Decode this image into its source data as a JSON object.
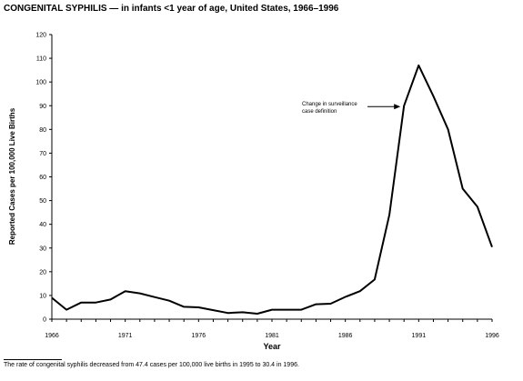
{
  "title": "CONGENITAL SYPHILIS — in infants <1 year of age, United States, 1966–1996",
  "footnote": "The rate of congenital syphilis decreased from 47.4 cases per 100,000 live births in 1995 to 30.4 in 1996.",
  "chart_data": {
    "type": "line",
    "title": "CONGENITAL SYPHILIS — in infants <1 year of age, United States, 1966–1996",
    "xlabel": "Year",
    "ylabel": "Reported Cases per 100,000 Live Births",
    "xlim": [
      1966,
      1996
    ],
    "ylim": [
      0,
      120
    ],
    "x_ticks": [
      1966,
      1971,
      1976,
      1981,
      1986,
      1991,
      1996
    ],
    "y_ticks": [
      0,
      10,
      20,
      30,
      40,
      50,
      60,
      70,
      80,
      90,
      100,
      110,
      120
    ],
    "grid": false,
    "legend": "none",
    "series": [
      {
        "x": [
          1966,
          1967,
          1968,
          1969,
          1970,
          1971,
          1972,
          1973,
          1974,
          1975,
          1976,
          1977,
          1978,
          1979,
          1980,
          1981,
          1982,
          1983,
          1984,
          1985,
          1986,
          1987,
          1988,
          1989,
          1990,
          1991,
          1992,
          1993,
          1994,
          1995,
          1996
        ],
        "values": [
          9.0,
          4.0,
          7.0,
          7.0,
          8.3,
          11.8,
          10.9,
          9.3,
          7.8,
          5.2,
          5.0,
          3.8,
          2.6,
          2.9,
          2.3,
          4.0,
          4.0,
          4.0,
          6.3,
          6.5,
          9.4,
          11.8,
          16.7,
          44.0,
          90.0,
          107.0,
          94.0,
          80.0,
          55.0,
          47.4,
          30.4
        ]
      }
    ],
    "annotations": [
      {
        "text": "Change in surveillance case definition",
        "x": 1990,
        "y": 90.0
      }
    ]
  }
}
